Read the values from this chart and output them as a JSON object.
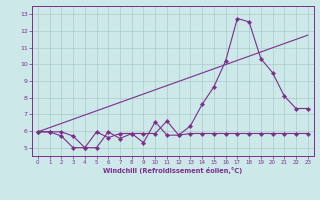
{
  "xlabel": "Windchill (Refroidissement éolien,°C)",
  "xlim": [
    -0.5,
    23.5
  ],
  "ylim": [
    4.5,
    13.5
  ],
  "yticks": [
    5,
    6,
    7,
    8,
    9,
    10,
    11,
    12,
    13
  ],
  "xticks": [
    0,
    1,
    2,
    3,
    4,
    5,
    6,
    7,
    8,
    9,
    10,
    11,
    12,
    13,
    14,
    15,
    16,
    17,
    18,
    19,
    20,
    21,
    22,
    23
  ],
  "bg_color": "#cce8e8",
  "line_color": "#7b2f8b",
  "grid_color": "#aacccc",
  "line1_x": [
    0,
    1,
    2,
    3,
    4,
    5,
    6,
    7,
    8,
    9,
    10,
    11,
    12,
    13,
    14,
    15,
    16,
    17,
    18,
    19,
    20,
    21,
    22,
    23
  ],
  "line1_y": [
    5.95,
    5.95,
    5.7,
    5.0,
    5.0,
    5.95,
    5.6,
    5.85,
    5.85,
    5.3,
    6.55,
    5.75,
    5.75,
    6.3,
    7.6,
    8.65,
    10.2,
    12.75,
    12.55,
    10.35,
    9.5,
    8.1,
    7.35,
    7.35
  ],
  "line2_x": [
    0,
    1,
    2,
    3,
    4,
    5,
    6,
    7,
    8,
    9,
    10,
    11,
    12,
    13,
    14,
    15,
    16,
    17,
    18,
    19,
    20,
    21,
    22,
    23
  ],
  "line2_y": [
    5.95,
    5.95,
    5.95,
    5.7,
    5.0,
    5.0,
    5.95,
    5.55,
    5.85,
    5.85,
    5.85,
    6.6,
    5.75,
    5.85,
    5.85,
    5.85,
    5.85,
    5.85,
    5.85,
    5.85,
    5.85,
    5.85,
    5.85,
    5.85
  ],
  "line3_x": [
    0,
    23
  ],
  "line3_y": [
    5.95,
    11.75
  ]
}
